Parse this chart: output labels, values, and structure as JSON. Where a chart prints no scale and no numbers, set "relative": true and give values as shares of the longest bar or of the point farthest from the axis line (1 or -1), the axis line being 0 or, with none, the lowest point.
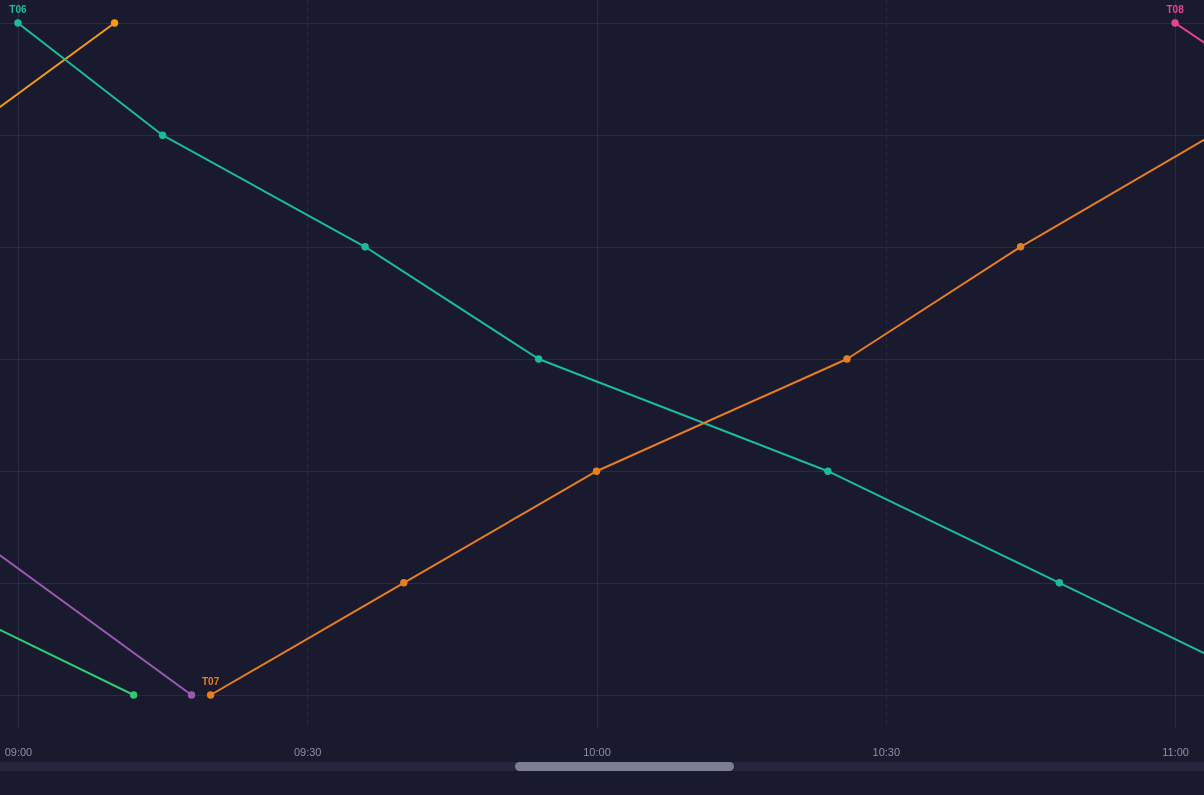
{
  "chart_data": {
    "type": "line",
    "relative": true,
    "marker": "circle",
    "grid": true,
    "xlim": [
      8.969,
      11.05
    ],
    "xticks": [
      {
        "value": 9,
        "label": "09:00"
      },
      {
        "value": 9.5,
        "label": "09:30"
      },
      {
        "value": 10,
        "label": "10:00"
      },
      {
        "value": 10.5,
        "label": "10:30"
      },
      {
        "value": 11,
        "label": "11:00"
      }
    ],
    "series": [
      {
        "color": "#f39c12",
        "x": [
          8.969,
          9.167
        ],
        "values": [
          0.875,
          1
        ]
      },
      {
        "color": "#2ecc71",
        "x": [
          8.969,
          9.2
        ],
        "values": [
          0.097,
          0
        ]
      },
      {
        "color": "#9b59b6",
        "x": [
          8.969,
          9.3
        ],
        "values": [
          0.208,
          0
        ]
      },
      {
        "name": "T06",
        "color": "#1abc9c",
        "x": [
          9,
          9.25,
          9.6,
          9.9,
          10.4,
          10.8,
          11.05
        ],
        "values": [
          1,
          0.833,
          0.667,
          0.5,
          0.333,
          0.167,
          0.0625
        ]
      },
      {
        "name": "T07",
        "color": "#e67e22",
        "x": [
          9.333,
          9.667,
          10,
          10.433,
          10.733,
          11.05
        ],
        "values": [
          0,
          0.167,
          0.333,
          0.5,
          0.667,
          0.826
        ]
      },
      {
        "name": "T08",
        "color": "#e84393",
        "x": [
          11,
          11.05
        ],
        "values": [
          1,
          0.971
        ]
      }
    ]
  }
}
